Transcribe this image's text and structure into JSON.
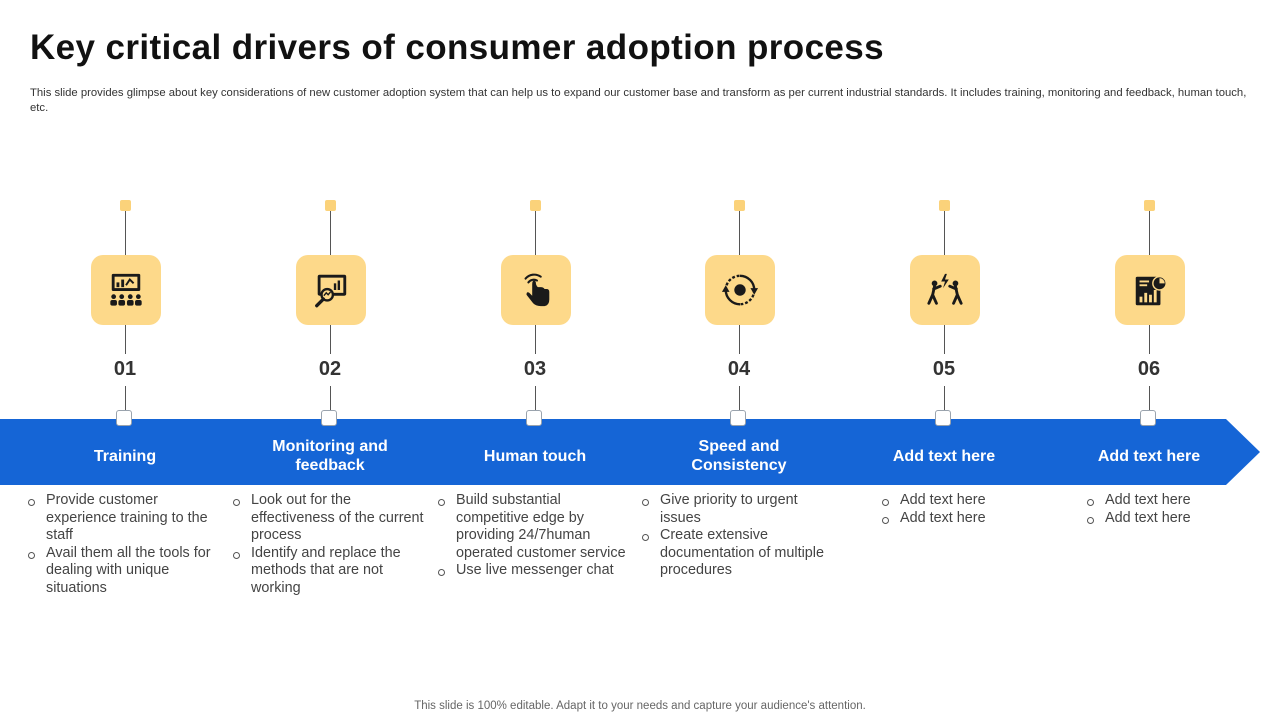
{
  "title": "Key critical drivers of consumer adoption process",
  "subtitle": "This slide provides glimpse about key considerations of new customer adoption system that can help us to expand our customer base and transform as per current industrial standards. It includes training, monitoring and feedback, human touch, etc.",
  "colors": {
    "band": "#1565d6",
    "icon_bg": "#fdd98a",
    "marker": "#fbd27a",
    "icon_fg": "#1a1a1a"
  },
  "steps": [
    {
      "number": "01",
      "label": "Training",
      "icon": "training-presentation-icon",
      "bullets": [
        "Provide customer experience training to the staff",
        "Avail them all the tools for dealing with unique situations"
      ]
    },
    {
      "number": "02",
      "label": "Monitoring and feedback",
      "icon": "monitoring-magnifier-icon",
      "bullets": [
        "Look out for the effectiveness of the current process",
        "Identify and replace the methods that are not working"
      ]
    },
    {
      "number": "03",
      "label": "Human touch",
      "icon": "touch-hand-icon",
      "bullets": [
        "Build substantial competitive edge by providing 24/7human operated customer service",
        "Use live messenger chat"
      ]
    },
    {
      "number": "04",
      "label": "Speed and Consistency",
      "icon": "cycle-arrows-icon",
      "bullets": [
        "Give priority to urgent issues",
        "Create extensive documentation of multiple procedures"
      ]
    },
    {
      "number": "05",
      "label": "Add text here",
      "icon": "competitors-fight-icon",
      "bullets": [
        "Add text here",
        "Add text here"
      ]
    },
    {
      "number": "06",
      "label": "Add text here",
      "icon": "report-chart-icon",
      "bullets": [
        "Add text here",
        "Add text here"
      ]
    }
  ],
  "footer": "This slide is 100% editable. Adapt it to your needs and capture your audience's attention."
}
